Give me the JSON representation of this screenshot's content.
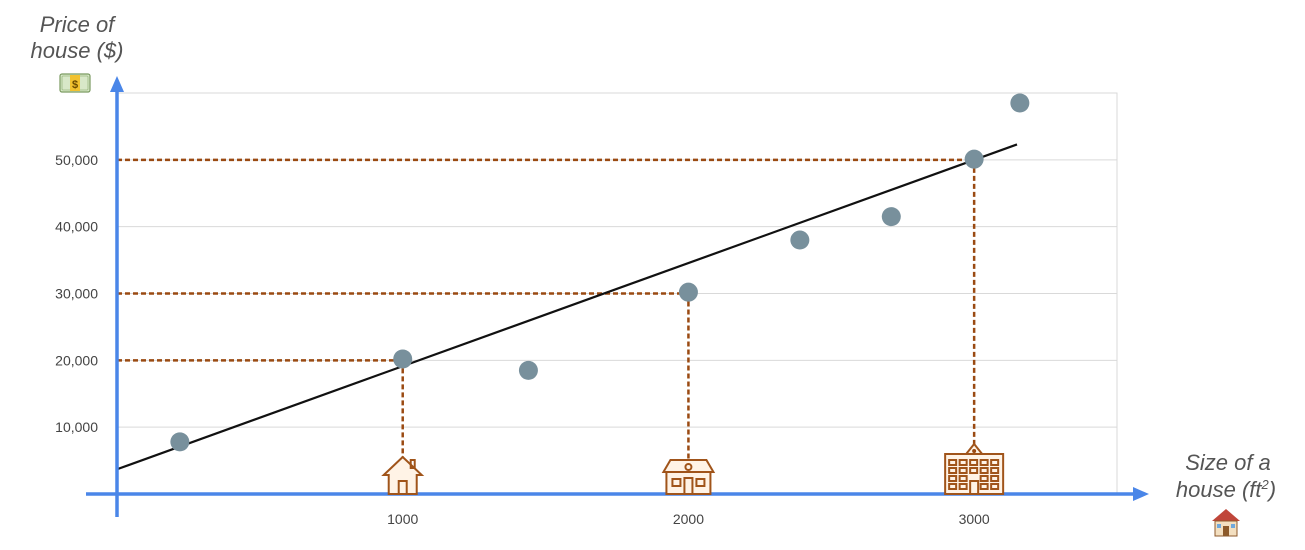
{
  "chart_data": {
    "type": "scatter",
    "title": "",
    "ylabel_line1": "Price of",
    "ylabel_line2": "house ($)",
    "xlabel_line1": "Size of a",
    "xlabel_line2": "house (ft",
    "xlabel_sup": "2",
    "xlabel_end": ")",
    "y_icon": "money-icon",
    "x_icon": "house-icon",
    "xlim": [
      0,
      3500
    ],
    "ylim": [
      0,
      60000
    ],
    "x_ticks": [
      1000,
      2000,
      3000
    ],
    "x_tick_labels": [
      "1000",
      "2000",
      "3000"
    ],
    "y_ticks": [
      10000,
      20000,
      30000,
      40000,
      50000
    ],
    "y_tick_labels": [
      "10,000",
      "20,000",
      "30,000",
      "40,000",
      "50,000"
    ],
    "grid": true,
    "points": [
      {
        "x": 220,
        "y": 7800
      },
      {
        "x": 1000,
        "y": 20200
      },
      {
        "x": 1440,
        "y": 18500
      },
      {
        "x": 2000,
        "y": 30200
      },
      {
        "x": 2390,
        "y": 38000
      },
      {
        "x": 2710,
        "y": 41500
      },
      {
        "x": 3000,
        "y": 50100
      },
      {
        "x": 3160,
        "y": 58500
      }
    ],
    "trend_line": {
      "x": [
        0,
        3150
      ],
      "y": [
        3700,
        52300
      ]
    },
    "guides": [
      {
        "x": 1000,
        "y": 20000,
        "icon": "small-house-icon"
      },
      {
        "x": 2000,
        "y": 30000,
        "icon": "medium-house-icon"
      },
      {
        "x": 3000,
        "y": 50000,
        "icon": "large-building-icon"
      }
    ],
    "colors": {
      "axis": "#4a86e8",
      "point": "#78909c",
      "guide": "#9a4a12",
      "trend": "#111111",
      "grid": "#d9d9d9"
    }
  }
}
